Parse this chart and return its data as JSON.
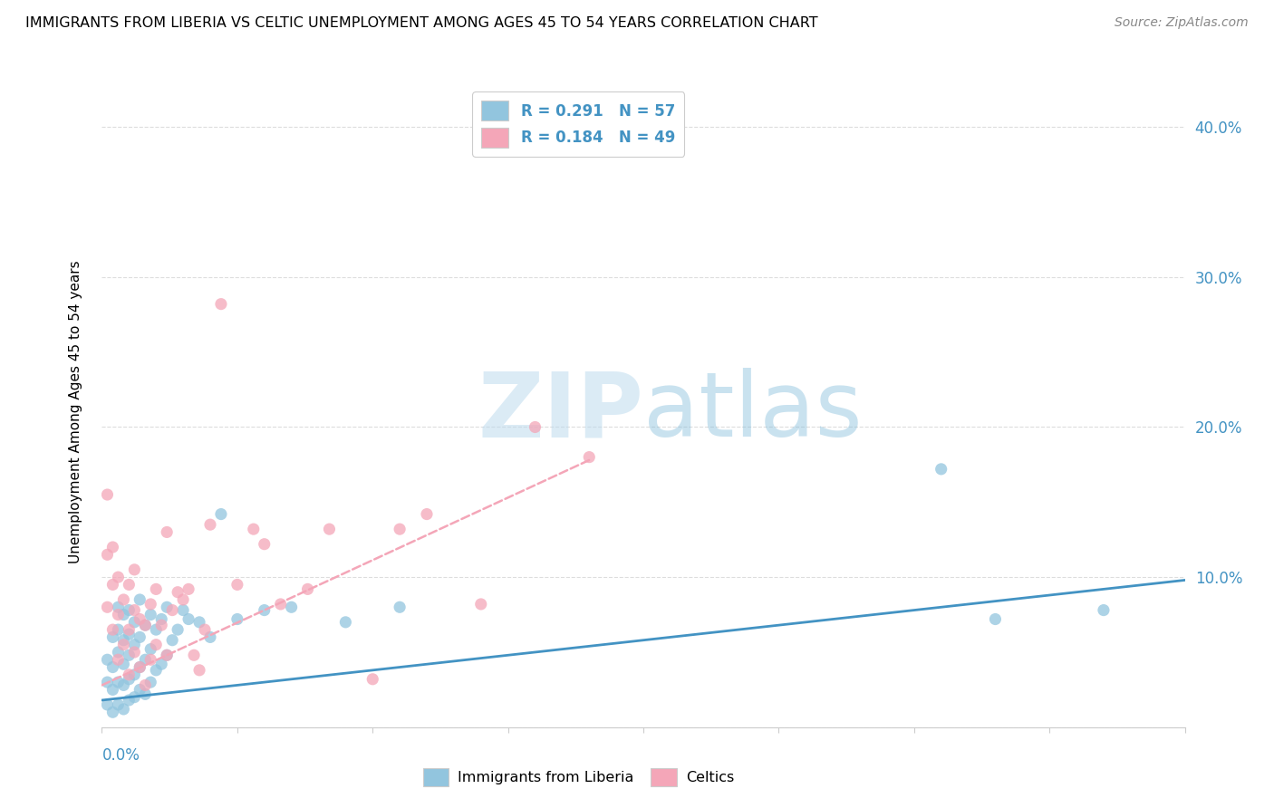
{
  "title": "IMMIGRANTS FROM LIBERIA VS CELTIC UNEMPLOYMENT AMONG AGES 45 TO 54 YEARS CORRELATION CHART",
  "source": "Source: ZipAtlas.com",
  "ylabel": "Unemployment Among Ages 45 to 54 years",
  "xlim": [
    0.0,
    0.2
  ],
  "ylim": [
    0.0,
    0.42
  ],
  "yticks": [
    0.0,
    0.1,
    0.2,
    0.3,
    0.4
  ],
  "ytick_labels": [
    "",
    "10.0%",
    "20.0%",
    "30.0%",
    "40.0%"
  ],
  "xticks": [
    0.0,
    0.025,
    0.05,
    0.075,
    0.1,
    0.125,
    0.15,
    0.175,
    0.2
  ],
  "legend_r1": "R = 0.291",
  "legend_n1": "N = 57",
  "legend_r2": "R = 0.184",
  "legend_n2": "N = 49",
  "color_blue": "#92c5de",
  "color_pink": "#f4a6b8",
  "color_line_blue": "#4393c3",
  "color_line_pink": "#d6604d",
  "color_axis": "#4393c3",
  "watermark_color": "#d0e8f5",
  "legend_label1": "Immigrants from Liberia",
  "legend_label2": "Celtics",
  "blue_scatter_x": [
    0.001,
    0.001,
    0.001,
    0.002,
    0.002,
    0.002,
    0.002,
    0.003,
    0.003,
    0.003,
    0.003,
    0.003,
    0.004,
    0.004,
    0.004,
    0.004,
    0.004,
    0.005,
    0.005,
    0.005,
    0.005,
    0.005,
    0.006,
    0.006,
    0.006,
    0.006,
    0.007,
    0.007,
    0.007,
    0.007,
    0.008,
    0.008,
    0.008,
    0.009,
    0.009,
    0.009,
    0.01,
    0.01,
    0.011,
    0.011,
    0.012,
    0.012,
    0.013,
    0.014,
    0.015,
    0.016,
    0.018,
    0.02,
    0.022,
    0.025,
    0.03,
    0.035,
    0.045,
    0.055,
    0.155,
    0.165,
    0.185
  ],
  "blue_scatter_y": [
    0.015,
    0.03,
    0.045,
    0.01,
    0.025,
    0.04,
    0.06,
    0.015,
    0.03,
    0.05,
    0.065,
    0.08,
    0.012,
    0.028,
    0.042,
    0.058,
    0.075,
    0.018,
    0.032,
    0.048,
    0.062,
    0.078,
    0.02,
    0.035,
    0.055,
    0.07,
    0.025,
    0.04,
    0.06,
    0.085,
    0.022,
    0.045,
    0.068,
    0.03,
    0.052,
    0.075,
    0.038,
    0.065,
    0.042,
    0.072,
    0.048,
    0.08,
    0.058,
    0.065,
    0.078,
    0.072,
    0.07,
    0.06,
    0.142,
    0.072,
    0.078,
    0.08,
    0.07,
    0.08,
    0.172,
    0.072,
    0.078
  ],
  "pink_scatter_x": [
    0.001,
    0.001,
    0.001,
    0.002,
    0.002,
    0.002,
    0.003,
    0.003,
    0.003,
    0.004,
    0.004,
    0.005,
    0.005,
    0.005,
    0.006,
    0.006,
    0.006,
    0.007,
    0.007,
    0.008,
    0.008,
    0.009,
    0.009,
    0.01,
    0.01,
    0.011,
    0.012,
    0.012,
    0.013,
    0.014,
    0.015,
    0.016,
    0.017,
    0.018,
    0.019,
    0.02,
    0.022,
    0.025,
    0.028,
    0.03,
    0.033,
    0.038,
    0.042,
    0.05,
    0.055,
    0.06,
    0.07,
    0.08,
    0.09
  ],
  "pink_scatter_y": [
    0.08,
    0.115,
    0.155,
    0.065,
    0.095,
    0.12,
    0.045,
    0.075,
    0.1,
    0.055,
    0.085,
    0.035,
    0.065,
    0.095,
    0.05,
    0.078,
    0.105,
    0.04,
    0.072,
    0.028,
    0.068,
    0.045,
    0.082,
    0.055,
    0.092,
    0.068,
    0.048,
    0.13,
    0.078,
    0.09,
    0.085,
    0.092,
    0.048,
    0.038,
    0.065,
    0.135,
    0.282,
    0.095,
    0.132,
    0.122,
    0.082,
    0.092,
    0.132,
    0.032,
    0.132,
    0.142,
    0.082,
    0.2,
    0.18
  ],
  "blue_trend_x": [
    0.0,
    0.2
  ],
  "blue_trend_y": [
    0.018,
    0.098
  ],
  "pink_trend_x": [
    0.0,
    0.09
  ],
  "pink_trend_y": [
    0.028,
    0.178
  ]
}
